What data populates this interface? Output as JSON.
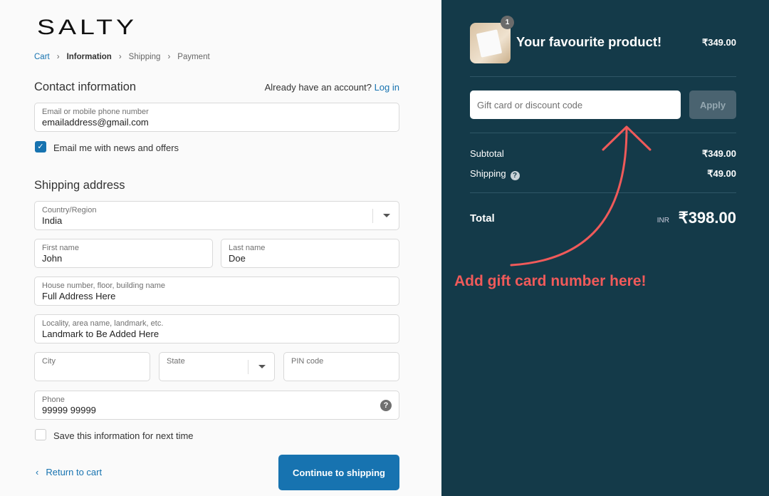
{
  "logo": "SALTY",
  "breadcrumb": [
    "Cart",
    "Information",
    "Shipping",
    "Payment"
  ],
  "contact": {
    "title": "Contact information",
    "account_prompt": "Already have an account?",
    "login": "Log in",
    "email_label": "Email or mobile phone number",
    "email_value": "emailaddress@gmail.com",
    "news_label": "Email me with news and offers",
    "news_checked": true
  },
  "shipping": {
    "title": "Shipping address",
    "country_label": "Country/Region",
    "country_value": "India",
    "first_label": "First name",
    "first_value": "John",
    "last_label": "Last name",
    "last_value": "Doe",
    "address_label": "House number, floor, building name",
    "address_value": "Full Address Here",
    "locality_label": "Locality, area name, landmark, etc.",
    "locality_value": "Landmark to Be Added Here",
    "city_label": "City",
    "state_label": "State",
    "pin_label": "PIN code",
    "phone_label": "Phone",
    "phone_value": "99999 99999",
    "save_label": "Save this information for next time",
    "save_checked": false
  },
  "actions": {
    "return": "Return to cart",
    "continue": "Continue to shipping"
  },
  "summary": {
    "quantity": "1",
    "product": "Your favourite product!",
    "product_price": "₹349.00",
    "code_placeholder": "Gift card or discount code",
    "apply": "Apply",
    "subtotal_label": "Subtotal",
    "subtotal": "₹349.00",
    "shipping_label": "Shipping",
    "shipping": "₹49.00",
    "total_label": "Total",
    "currency": "INR",
    "total": "₹398.00"
  },
  "annotation": "Add gift card number here!",
  "colors": {
    "accent": "#1773b0",
    "panel": "#143a49",
    "annotation": "#f05a5a"
  }
}
